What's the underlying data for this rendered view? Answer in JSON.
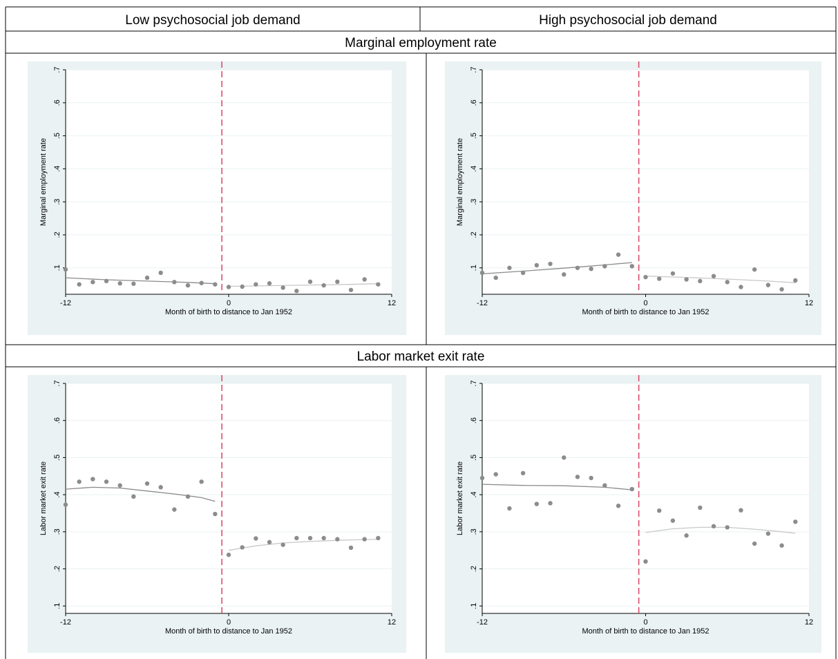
{
  "table": {
    "col_headers": [
      "Low psychosocial job demand",
      "High psychosocial job demand"
    ],
    "row_headers": [
      "Marginal employment rate",
      "Labor market exit rate"
    ]
  },
  "colors": {
    "panel_bg": "#eaf2f3",
    "cutoff_line": "#d94c6c",
    "points": "#8c8c8c",
    "fit": "#8a8a8a"
  },
  "chart_data": [
    {
      "type": "scatter",
      "row": "Marginal employment rate",
      "column": "Low psychosocial job demand",
      "xlabel": "Month of birth to distance to Jan 1952",
      "ylabel": "Marginal employment rate",
      "xlim": [
        -12,
        12
      ],
      "ylim": [
        0.02,
        0.7
      ],
      "xticks": [
        "-12",
        "0",
        "12"
      ],
      "yticks": [
        ".1",
        ".2",
        ".3",
        ".4",
        ".5",
        ".6",
        ".7"
      ],
      "cutoff_x": -0.5,
      "grid": true,
      "x": [
        -12,
        -11,
        -10,
        -9,
        -8,
        -7,
        -6,
        -5,
        -4,
        -3,
        -2,
        -1,
        0,
        1,
        2,
        3,
        4,
        5,
        6,
        7,
        8,
        9,
        10,
        11
      ],
      "y": [
        0.095,
        0.05,
        0.057,
        0.06,
        0.053,
        0.052,
        0.07,
        0.085,
        0.057,
        0.047,
        0.054,
        0.05,
        0.042,
        0.043,
        0.05,
        0.053,
        0.04,
        0.03,
        0.058,
        0.047,
        0.058,
        0.033,
        0.065,
        0.05
      ],
      "fit_left": {
        "x": [
          -12,
          -9,
          -6,
          -3,
          -1
        ],
        "y": [
          0.07,
          0.064,
          0.06,
          0.056,
          0.052
        ]
      },
      "fit_right": {
        "x": [
          0,
          3,
          6,
          9,
          11
        ],
        "y": [
          0.044,
          0.046,
          0.048,
          0.05,
          0.052
        ]
      }
    },
    {
      "type": "scatter",
      "row": "Marginal employment rate",
      "column": "High psychosocial job demand",
      "xlabel": "Month of birth to distance to Jan 1952",
      "ylabel": "Marginal employment rate",
      "xlim": [
        -12,
        12
      ],
      "ylim": [
        0.02,
        0.7
      ],
      "xticks": [
        "-12",
        "0",
        "12"
      ],
      "yticks": [
        ".1",
        ".2",
        ".3",
        ".4",
        ".5",
        ".6",
        ".7"
      ],
      "cutoff_x": -0.5,
      "grid": true,
      "x": [
        -12,
        -11,
        -10,
        -9,
        -8,
        -7,
        -6,
        -5,
        -4,
        -3,
        -2,
        -1,
        0,
        1,
        2,
        3,
        4,
        5,
        6,
        7,
        8,
        9,
        10,
        11
      ],
      "y": [
        0.085,
        0.07,
        0.1,
        0.085,
        0.108,
        0.112,
        0.08,
        0.1,
        0.097,
        0.105,
        0.14,
        0.105,
        0.072,
        0.067,
        0.083,
        0.065,
        0.06,
        0.075,
        0.057,
        0.042,
        0.095,
        0.048,
        0.035,
        0.062
      ],
      "fit_left": {
        "x": [
          -12,
          -9,
          -6,
          -3,
          -1
        ],
        "y": [
          0.082,
          0.09,
          0.099,
          0.109,
          0.116
        ]
      },
      "fit_right": {
        "x": [
          0,
          3,
          6,
          9,
          11
        ],
        "y": [
          0.075,
          0.071,
          0.066,
          0.06,
          0.055
        ]
      }
    },
    {
      "type": "scatter",
      "row": "Labor market exit rate",
      "column": "Low psychosocial job demand",
      "xlabel": "Month of birth to distance to Jan 1952",
      "ylabel": "Labor market exit rate",
      "xlim": [
        -12,
        12
      ],
      "ylim": [
        0.08,
        0.7
      ],
      "xticks": [
        "-12",
        "0",
        "12"
      ],
      "yticks": [
        ".1",
        ".2",
        ".3",
        ".4",
        ".5",
        ".6",
        ".7"
      ],
      "cutoff_x": -0.5,
      "grid": true,
      "x": [
        -12,
        -11,
        -10,
        -9,
        -8,
        -7,
        -6,
        -5,
        -4,
        -3,
        -2,
        -1,
        0,
        1,
        2,
        3,
        4,
        5,
        6,
        7,
        8,
        9,
        10,
        11
      ],
      "y": [
        0.373,
        0.435,
        0.442,
        0.435,
        0.425,
        0.395,
        0.43,
        0.42,
        0.36,
        0.395,
        0.435,
        0.348,
        0.238,
        0.258,
        0.282,
        0.272,
        0.265,
        0.283,
        0.283,
        0.283,
        0.28,
        0.257,
        0.28,
        0.283
      ],
      "fit_left": {
        "x": [
          -12,
          -10,
          -8,
          -6,
          -4,
          -2,
          -1
        ],
        "y": [
          0.415,
          0.42,
          0.418,
          0.41,
          0.402,
          0.392,
          0.382
        ]
      },
      "fit_right": {
        "x": [
          0,
          2,
          4,
          6,
          8,
          10,
          11
        ],
        "y": [
          0.25,
          0.262,
          0.27,
          0.274,
          0.277,
          0.279,
          0.28
        ]
      }
    },
    {
      "type": "scatter",
      "row": "Labor market exit rate",
      "column": "High psychosocial job demand",
      "xlabel": "Month of birth to distance to Jan 1952",
      "ylabel": "Labor market exit rate",
      "xlim": [
        -12,
        12
      ],
      "ylim": [
        0.08,
        0.7
      ],
      "xticks": [
        "-12",
        "0",
        "12"
      ],
      "yticks": [
        ".1",
        ".2",
        ".3",
        ".4",
        ".5",
        ".6",
        ".7"
      ],
      "cutoff_x": -0.5,
      "grid": true,
      "x": [
        -12,
        -11,
        -10,
        -9,
        -8,
        -7,
        -6,
        -5,
        -4,
        -3,
        -2,
        -1,
        0,
        1,
        2,
        3,
        4,
        5,
        6,
        7,
        8,
        9,
        10,
        11
      ],
      "y": [
        0.445,
        0.455,
        0.363,
        0.458,
        0.375,
        0.377,
        0.5,
        0.448,
        0.445,
        0.425,
        0.37,
        0.415,
        0.22,
        0.357,
        0.33,
        0.29,
        0.365,
        0.315,
        0.312,
        0.358,
        0.268,
        0.295,
        0.263,
        0.327
      ],
      "fit_left": {
        "x": [
          -12,
          -9,
          -6,
          -3,
          -1
        ],
        "y": [
          0.428,
          0.425,
          0.424,
          0.42,
          0.413
        ]
      },
      "fit_right": {
        "x": [
          0,
          2,
          4,
          6,
          8,
          10,
          11
        ],
        "y": [
          0.298,
          0.308,
          0.312,
          0.312,
          0.307,
          0.3,
          0.296
        ]
      }
    }
  ]
}
